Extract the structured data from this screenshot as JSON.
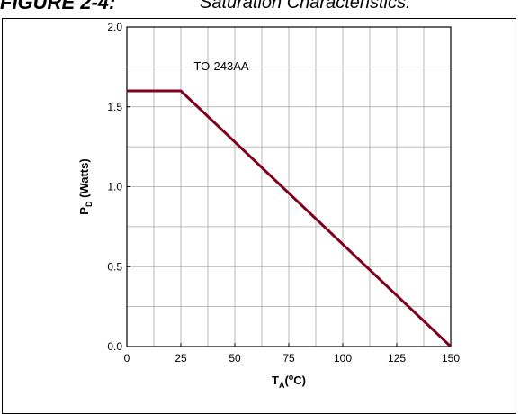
{
  "header": {
    "figure_label": "FIGURE 2-4:",
    "caption": "Saturation Characteristics."
  },
  "chart_data": {
    "type": "line",
    "xlabel": {
      "main": "T",
      "sub": "A",
      "rest_open": "(",
      "sup": "o",
      "rest_close": "C)"
    },
    "ylabel": {
      "main": "P",
      "sub": "D",
      "rest": " (Watts)"
    },
    "xlim": [
      0,
      150
    ],
    "ylim": [
      0,
      2.0
    ],
    "x_ticks": [
      0,
      25,
      50,
      75,
      100,
      125,
      150
    ],
    "x_tick_labels": [
      "0",
      "25",
      "50",
      "75",
      "100",
      "125",
      "150"
    ],
    "y_ticks": [
      0,
      0.5,
      1.0,
      1.5,
      2.0
    ],
    "y_tick_labels": [
      "0.0",
      "0.5",
      "1.0",
      "1.5",
      "2.0"
    ],
    "x_grid": [
      0,
      12.5,
      25,
      37.5,
      50,
      62.5,
      75,
      87.5,
      100,
      112.5,
      125,
      137.5,
      150
    ],
    "y_grid": [
      0,
      0.25,
      0.5,
      0.75,
      1.0,
      1.25,
      1.5,
      1.75,
      2.0
    ],
    "grid": true,
    "series": [
      {
        "x": [
          0,
          25,
          150
        ],
        "y": [
          1.6,
          1.6,
          0
        ],
        "color": "#800020"
      }
    ],
    "annotations": [
      {
        "text": "TO-243AA",
        "x": 31,
        "y": 1.73
      }
    ]
  }
}
